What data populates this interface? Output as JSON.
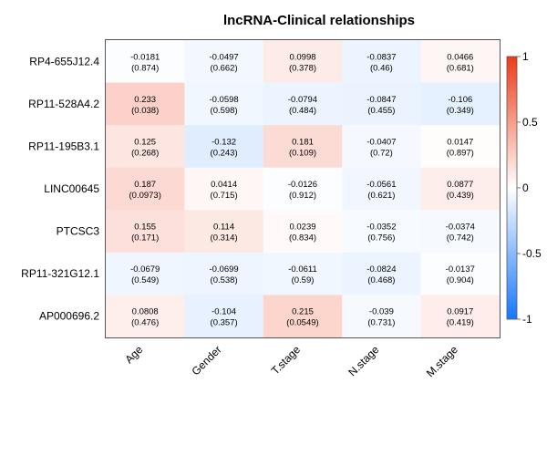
{
  "chart_data": {
    "type": "heatmap",
    "title": "lncRNA-Clinical relationships",
    "rows": [
      "RP4-655J12.4",
      "RP11-528A4.2",
      "RP11-195B3.1",
      "LINC00645",
      "PTCSC3",
      "RP11-321G12.1",
      "AP000696.2"
    ],
    "columns": [
      "Age",
      "Gender",
      "T.stage",
      "N.stage",
      "M.stage"
    ],
    "values": [
      [
        -0.0181,
        -0.0497,
        0.0998,
        -0.0837,
        0.0466
      ],
      [
        0.233,
        -0.0598,
        -0.0794,
        -0.0847,
        -0.106
      ],
      [
        0.125,
        -0.132,
        0.181,
        -0.0407,
        0.0147
      ],
      [
        0.187,
        0.0414,
        -0.0126,
        -0.0561,
        0.0877
      ],
      [
        0.155,
        0.114,
        0.0239,
        -0.0352,
        -0.0374
      ],
      [
        -0.0679,
        -0.0699,
        -0.0611,
        -0.0824,
        -0.0137
      ],
      [
        0.0808,
        -0.104,
        0.215,
        -0.039,
        0.0917
      ]
    ],
    "value_labels": [
      [
        "-0.0181",
        "-0.0497",
        "0.0998",
        "-0.0837",
        "0.0466"
      ],
      [
        "0.233",
        "-0.0598",
        "-0.0794",
        "-0.0847",
        "-0.106"
      ],
      [
        "0.125",
        "-0.132",
        "0.181",
        "-0.0407",
        "0.0147"
      ],
      [
        "0.187",
        "0.0414",
        "-0.0126",
        "-0.0561",
        "0.0877"
      ],
      [
        "0.155",
        "0.114",
        "0.0239",
        "-0.0352",
        "-0.0374"
      ],
      [
        "-0.0679",
        "-0.0699",
        "-0.0611",
        "-0.0824",
        "-0.0137"
      ],
      [
        "0.0808",
        "-0.104",
        "0.215",
        "-0.039",
        "0.0917"
      ]
    ],
    "pvalue_labels": [
      [
        "(0.874)",
        "(0.662)",
        "(0.378)",
        "(0.46)",
        "(0.681)"
      ],
      [
        "(0.038)",
        "(0.598)",
        "(0.484)",
        "(0.455)",
        "(0.349)"
      ],
      [
        "(0.268)",
        "(0.243)",
        "(0.109)",
        "(0.72)",
        "(0.897)"
      ],
      [
        "(0.0973)",
        "(0.715)",
        "(0.912)",
        "(0.621)",
        "(0.439)"
      ],
      [
        "(0.171)",
        "(0.314)",
        "(0.834)",
        "(0.756)",
        "(0.742)"
      ],
      [
        "(0.549)",
        "(0.538)",
        "(0.59)",
        "(0.468)",
        "(0.904)"
      ],
      [
        "(0.476)",
        "(0.357)",
        "(0.0549)",
        "(0.731)",
        "(0.419)"
      ]
    ],
    "color_range": [
      -1,
      1
    ],
    "colorbar_ticks": [
      "1",
      "0.5",
      "0",
      "-0.5",
      "-1"
    ],
    "colorbar_tick_values": [
      1,
      0.5,
      0,
      -0.5,
      -1
    ],
    "colors": {
      "low": "#1577ff",
      "mid": "#ffffff",
      "high": "#ef3a16"
    },
    "legend_position": "right"
  }
}
